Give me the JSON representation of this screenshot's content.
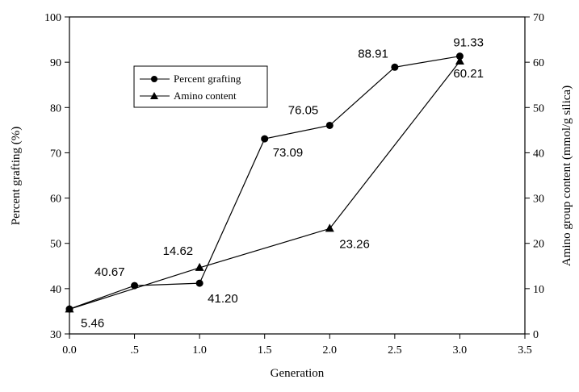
{
  "chart_data": {
    "type": "line",
    "xlabel": "Generation",
    "ylabel": "Percent grafting (%)",
    "y2label": "Amino group content (mmol/g silica)",
    "xlim": [
      0,
      3.5
    ],
    "ylim": [
      30,
      100
    ],
    "y2lim": [
      0,
      70
    ],
    "xticks": [
      "0.0",
      ".5",
      "1.0",
      "1.5",
      "2.0",
      "2.5",
      "3.0",
      "3.5"
    ],
    "yticks": [
      "30",
      "40",
      "50",
      "60",
      "70",
      "80",
      "90",
      "100"
    ],
    "y2ticks": [
      "0",
      "10",
      "20",
      "30",
      "40",
      "50",
      "60",
      "70"
    ],
    "legend_position": "upper-left",
    "grid": false,
    "series": [
      {
        "name": "Percent grafting",
        "axis": "left",
        "marker": "circle",
        "x": [
          0.0,
          0.5,
          1.0,
          1.5,
          2.0,
          2.5,
          3.0
        ],
        "values": [
          35.5,
          40.67,
          41.2,
          73.09,
          76.05,
          88.91,
          91.33
        ],
        "labels": [
          "",
          "40.67",
          "41.20",
          "73.09",
          "76.05",
          "88.91",
          "91.33"
        ]
      },
      {
        "name": "Amino content",
        "axis": "right",
        "marker": "triangle",
        "x": [
          0.0,
          1.0,
          2.0,
          3.0
        ],
        "values": [
          5.46,
          14.62,
          23.26,
          60.21
        ],
        "labels": [
          "5.46",
          "14.62",
          "23.26",
          "60.21"
        ]
      }
    ]
  }
}
